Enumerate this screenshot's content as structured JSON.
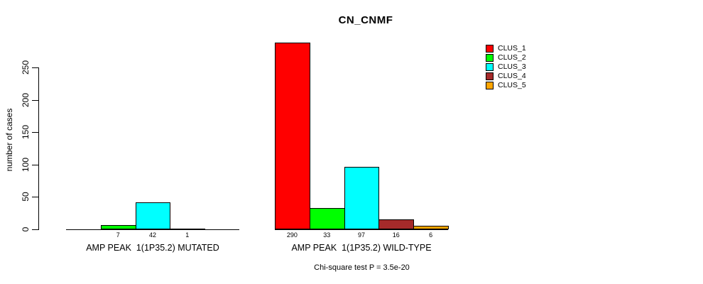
{
  "title": "CN_CNMF",
  "y_axis_title": "number of cases",
  "footer_note": "Chi-square test P = 3.5e-20",
  "background_color": "#ffffff",
  "axis_color": "#000000",
  "legend": [
    {
      "label": "CLUS_1",
      "color": "#ff0000"
    },
    {
      "label": "CLUS_2",
      "color": "#00ff00"
    },
    {
      "label": "CLUS_3",
      "color": "#00ffff"
    },
    {
      "label": "CLUS_4",
      "color": "#a52a2a"
    },
    {
      "label": "CLUS_5",
      "color": "#ffa500"
    }
  ],
  "chart_data": {
    "type": "bar",
    "title": "CN_CNMF",
    "ylabel": "number of cases",
    "xlabel": "",
    "ylim": [
      0,
      290
    ],
    "yticks": [
      0,
      50,
      100,
      150,
      200,
      250
    ],
    "grid": false,
    "legend_position": "right-outside-top",
    "categories": [
      "AMP PEAK  1(1P35.2) MUTATED",
      "AMP PEAK  1(1P35.2) WILD-TYPE"
    ],
    "series": [
      {
        "name": "CLUS_1",
        "color": "#ff0000",
        "values": [
          0,
          290
        ]
      },
      {
        "name": "CLUS_2",
        "color": "#00ff00",
        "values": [
          7,
          33
        ]
      },
      {
        "name": "CLUS_3",
        "color": "#00ffff",
        "values": [
          42,
          97
        ]
      },
      {
        "name": "CLUS_4",
        "color": "#a52a2a",
        "values": [
          1,
          16
        ]
      },
      {
        "name": "CLUS_5",
        "color": "#ffa500",
        "values": [
          0,
          6
        ]
      }
    ],
    "bar_count_labels_shown": [
      "7",
      "42",
      "1",
      "290",
      "33",
      "97",
      "16",
      "6"
    ],
    "zero_value_bars_hidden": true,
    "annotation": "Chi-square test P = 3.5e-20"
  }
}
